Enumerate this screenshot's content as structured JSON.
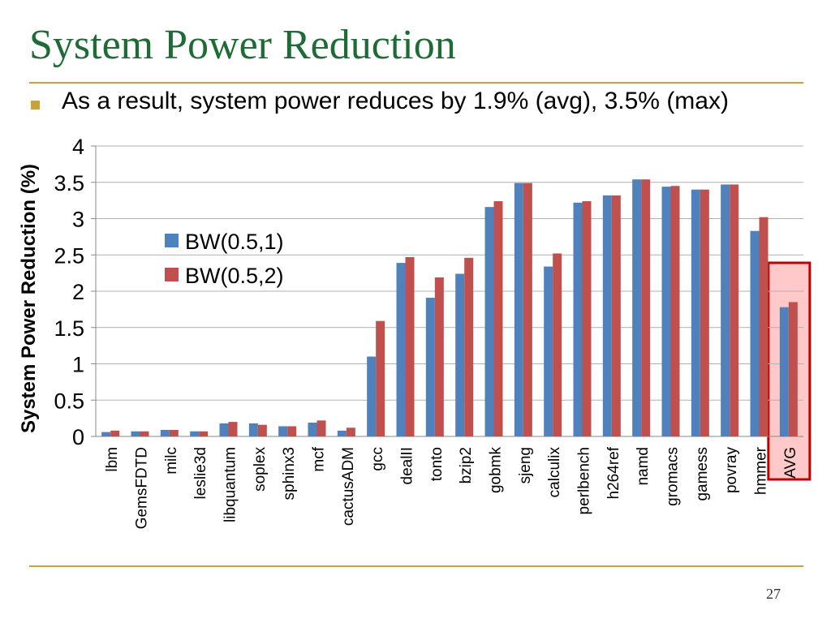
{
  "slide": {
    "title": "System Power Reduction",
    "bullet": "As a result, system power reduces by 1.9% (avg), 3.5% (max)",
    "page_number": "27"
  },
  "colors": {
    "title": "#1e6b35",
    "rule": "#c8a23a",
    "series1": "#4f81bd",
    "series2": "#c0504d",
    "highlight_fill": "#ffc9c9",
    "highlight_border": "#c00000"
  },
  "chart_data": {
    "type": "bar",
    "title": "",
    "xlabel": "",
    "ylabel": "System Power Reduction (%)",
    "ylim": [
      0,
      4
    ],
    "yticks": [
      "0",
      "0.5",
      "1",
      "1.5",
      "2",
      "2.5",
      "3",
      "3.5",
      "4"
    ],
    "grid": true,
    "legend_position": "upper-left",
    "categories": [
      "lbm",
      "GemsFDTD",
      "milc",
      "leslie3d",
      "libquantum",
      "soplex",
      "sphinx3",
      "mcf",
      "cactusADM",
      "gcc",
      "dealII",
      "tonto",
      "bzip2",
      "gobmk",
      "sjeng",
      "calculix",
      "perlbench",
      "h264ref",
      "namd",
      "gromacs",
      "gamess",
      "povray",
      "hmmer",
      "AVG"
    ],
    "series": [
      {
        "name": "BW(0.5,1)",
        "values": [
          0.06,
          0.07,
          0.09,
          0.07,
          0.18,
          0.18,
          0.14,
          0.19,
          0.08,
          1.1,
          2.39,
          1.91,
          2.24,
          3.16,
          3.49,
          2.34,
          3.22,
          3.32,
          3.54,
          3.44,
          3.4,
          3.47,
          2.83,
          1.78
        ]
      },
      {
        "name": "BW(0.5,2)",
        "values": [
          0.08,
          0.07,
          0.09,
          0.07,
          0.2,
          0.16,
          0.14,
          0.22,
          0.12,
          1.59,
          2.47,
          2.19,
          2.46,
          3.24,
          3.49,
          2.52,
          3.24,
          3.32,
          3.54,
          3.45,
          3.4,
          3.47,
          3.02,
          1.85
        ]
      }
    ],
    "highlight_category": "AVG"
  }
}
